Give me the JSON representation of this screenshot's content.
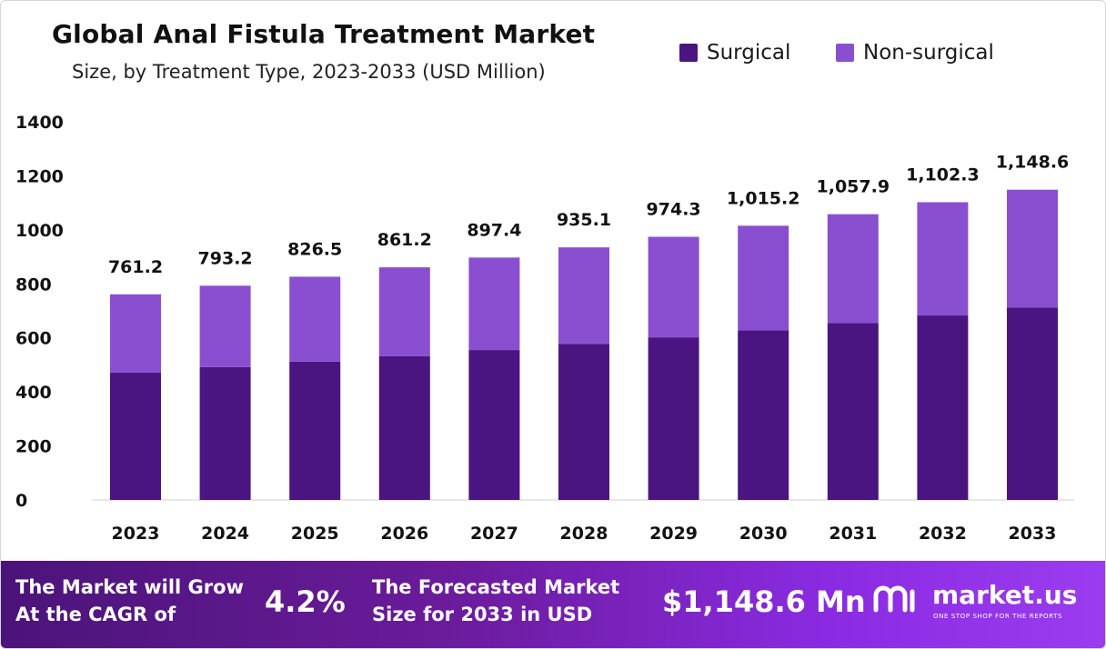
{
  "chart_data": {
    "type": "bar",
    "stacked": true,
    "title": "Global Anal Fistula Treatment Market",
    "subtitle": "Size, by Treatment Type, 2023-2033 (USD Million)",
    "categories": [
      "2023",
      "2024",
      "2025",
      "2026",
      "2027",
      "2028",
      "2029",
      "2030",
      "2031",
      "2032",
      "2033"
    ],
    "series": [
      {
        "name": "Surgical",
        "color": "#4a1580",
        "values": [
          472,
          492,
          512,
          532,
          555,
          578,
          602,
          628,
          655,
          683,
          712
        ]
      },
      {
        "name": "Non-surgical",
        "color": "#8a4fd0",
        "values": [
          289.2,
          301.2,
          314.5,
          329.2,
          342.4,
          357.1,
          372.3,
          387.2,
          402.9,
          419.3,
          436.6
        ]
      }
    ],
    "totals": [
      "761.2",
      "793.2",
      "826.5",
      "861.2",
      "897.4",
      "935.1",
      "974.3",
      "1,015.2",
      "1,057.9",
      "1,102.3",
      "1,148.6"
    ],
    "totals_values": [
      761.2,
      793.2,
      826.5,
      861.2,
      897.4,
      935.1,
      974.3,
      1015.2,
      1057.9,
      1102.3,
      1148.6
    ],
    "yticks": [
      "0",
      "200",
      "400",
      "600",
      "800",
      "1000",
      "1200",
      "1400"
    ],
    "ylim": [
      0,
      1400
    ],
    "legend_position": "top-right"
  },
  "banner": {
    "cagr_text_line1": "The Market will Grow",
    "cagr_text_line2": "At the CAGR of",
    "cagr_value": "4.2%",
    "forecast_text_line1": "The Forecasted Market",
    "forecast_text_line2": "Size for 2033 in USD",
    "forecast_value": "$1,148.6 Mn",
    "brand_name": "market.us",
    "brand_tagline": "ONE STOP SHOP FOR THE REPORTS"
  }
}
